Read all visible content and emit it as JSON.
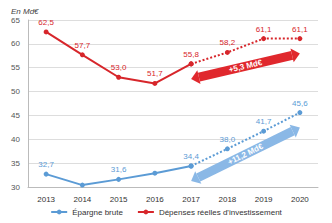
{
  "chart_data": {
    "type": "line",
    "y_label": "En Md€",
    "categories": [
      "2013",
      "2014",
      "2015",
      "2016",
      "2017",
      "2018",
      "2019",
      "2020"
    ],
    "series": [
      {
        "name": "Épargne brute",
        "color": "#5b9bd5",
        "marker": "circle",
        "line_style": "solid",
        "dashed_from": "2017",
        "values": [
          32.7,
          30.4,
          31.6,
          32.9,
          34.4,
          38.0,
          41.7,
          45.6
        ],
        "value_labels": [
          "32,7",
          null,
          "31,6",
          null,
          "34,4",
          "38,0",
          "41,7",
          "45,6"
        ]
      },
      {
        "name": "Dépenses réelles d'investissement",
        "color": "#d7262b",
        "marker": "circle",
        "line_style": "solid",
        "dashed_from": "2017",
        "values": [
          62.5,
          57.7,
          53.0,
          51.7,
          55.8,
          58.2,
          61.1,
          61.1
        ],
        "value_labels": [
          "62,5",
          "57,7",
          "53,0",
          "51,7",
          "55,8",
          "58,2",
          "61,1",
          "61,1"
        ]
      }
    ],
    "annotations": [
      {
        "text": "+5,3 Md€",
        "from": "2017",
        "to": "2020",
        "series": "Dépenses réelles d'investissement",
        "color": "#e0282d"
      },
      {
        "text": "+11,2 Md€",
        "from": "2017",
        "to": "2020",
        "series": "Épargne brute",
        "color": "#8ab8e6"
      }
    ],
    "ylim": [
      30,
      65
    ],
    "yticks": [
      30,
      35,
      40,
      45,
      50,
      55,
      60,
      65
    ],
    "grid": true,
    "legend": "bottom",
    "data_labels": true
  }
}
